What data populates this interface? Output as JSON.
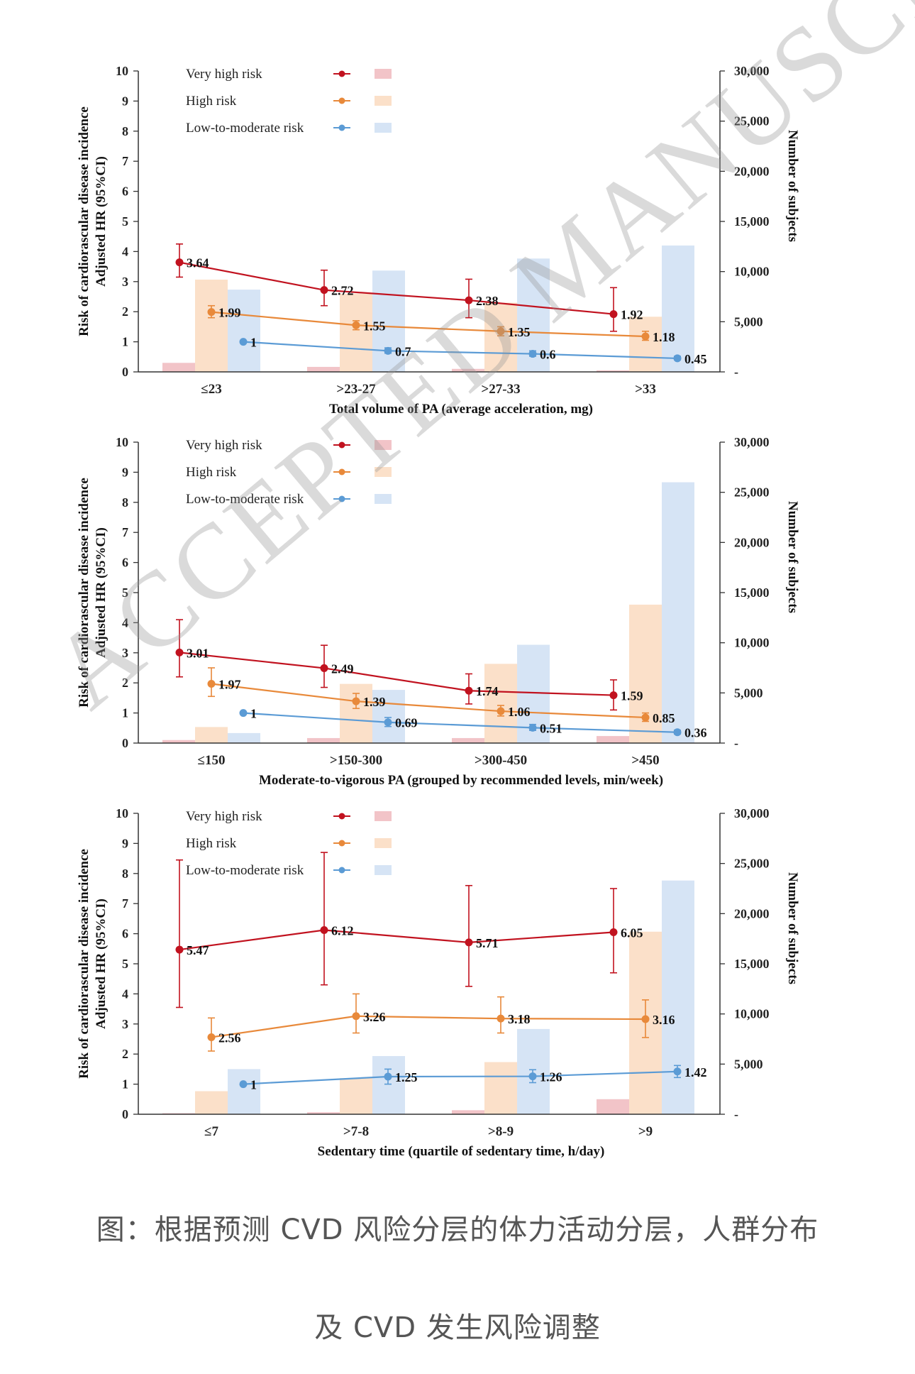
{
  "legend": {
    "very_high": "Very high risk",
    "high": "High risk",
    "low_moderate": "Low-to-moderate risk"
  },
  "colors": {
    "very_high_line": "#c1121f",
    "high_line": "#e8893a",
    "low_line": "#5b9bd5",
    "very_high_bar": "#f2c4c8",
    "high_bar": "#fbe0c9",
    "low_bar": "#d6e4f5"
  },
  "watermark": "ACCEPTED MANUSCRIPT",
  "caption": {
    "line1": "图：根据预测 CVD 风险分层的体力活动分层，人群分布",
    "line2": "及 CVD 发生风险调整"
  },
  "chart_data": [
    {
      "type": "bar+line",
      "xlabel": "Total volume of PA (average acceleration, mg)",
      "ylabel_left": [
        "Risk of cardiorascular disease incidence",
        "Adjusted HR (95%CI)"
      ],
      "ylabel_right": "Number of subjects",
      "ylim_left": [
        0,
        10
      ],
      "ylim_right": [
        0,
        30000
      ],
      "yticks_left": [
        "0",
        "1",
        "2",
        "3",
        "4",
        "5",
        "6",
        "7",
        "8",
        "9",
        "10"
      ],
      "yticks_right": [
        "-",
        "5,000",
        "10,000",
        "15,000",
        "20,000",
        "25,000",
        "30,000"
      ],
      "categories": [
        "≤23",
        ">23-27",
        ">27-33",
        ">33"
      ],
      "bars": {
        "very_high": [
          900,
          500,
          300,
          150
        ],
        "high": [
          9200,
          7800,
          6900,
          5500
        ],
        "low_moderate": [
          8200,
          10100,
          11300,
          12600
        ]
      },
      "lines": {
        "very_high": {
          "hr": [
            3.64,
            2.72,
            2.38,
            1.92
          ],
          "lo": [
            3.15,
            2.2,
            1.8,
            1.35
          ],
          "hi": [
            4.25,
            3.38,
            3.08,
            2.8
          ],
          "labels": [
            "3.64",
            "2.72",
            "2.38",
            "1.92"
          ]
        },
        "high": {
          "hr": [
            1.99,
            1.55,
            1.35,
            1.18
          ],
          "lo": [
            1.8,
            1.4,
            1.2,
            1.05
          ],
          "hi": [
            2.2,
            1.7,
            1.5,
            1.35
          ],
          "labels": [
            "1.99",
            "1.55",
            "1.35",
            "1.18"
          ]
        },
        "low_moderate": {
          "hr": [
            1,
            0.7,
            0.6,
            0.45
          ],
          "lo": [
            1,
            0.62,
            0.52,
            0.4
          ],
          "hi": [
            1,
            0.8,
            0.7,
            0.52
          ],
          "labels": [
            "1",
            "0.7",
            "0.6",
            "0.45"
          ]
        }
      }
    },
    {
      "type": "bar+line",
      "xlabel": "Moderate-to-vigorous PA (grouped by recommended levels, min/week)",
      "ylabel_left": [
        "Risk of cardiorascular disease incidence",
        "Adjusted HR (95%CI)"
      ],
      "ylabel_right": "Number of subjects",
      "ylim_left": [
        0,
        10
      ],
      "ylim_right": [
        0,
        30000
      ],
      "yticks_left": [
        "0",
        "1",
        "2",
        "3",
        "4",
        "5",
        "6",
        "7",
        "8",
        "9",
        "10"
      ],
      "yticks_right": [
        "-",
        "5,000",
        "10,000",
        "15,000",
        "20,000",
        "25,000",
        "30,000"
      ],
      "categories": [
        "≤150",
        ">150-300",
        ">300-450",
        ">450"
      ],
      "bars": {
        "very_high": [
          300,
          500,
          500,
          700
        ],
        "high": [
          1600,
          5900,
          7900,
          13800
        ],
        "low_moderate": [
          1000,
          5300,
          9800,
          26000
        ]
      },
      "lines": {
        "very_high": {
          "hr": [
            3.01,
            2.49,
            1.74,
            1.59
          ],
          "lo": [
            2.2,
            1.85,
            1.3,
            1.1
          ],
          "hi": [
            4.1,
            3.25,
            2.3,
            2.1
          ],
          "labels": [
            "3.01",
            "2.49",
            "1.74",
            "1.59"
          ]
        },
        "high": {
          "hr": [
            1.97,
            1.39,
            1.06,
            0.85
          ],
          "lo": [
            1.55,
            1.15,
            0.9,
            0.72
          ],
          "hi": [
            2.5,
            1.65,
            1.25,
            1.0
          ],
          "labels": [
            "1.97",
            "1.39",
            "1.06",
            "0.85"
          ]
        },
        "low_moderate": {
          "hr": [
            1,
            0.69,
            0.51,
            0.36
          ],
          "lo": [
            1,
            0.55,
            0.42,
            0.3
          ],
          "hi": [
            1,
            0.85,
            0.62,
            0.43
          ],
          "labels": [
            "1",
            "0.69",
            "0.51",
            "0.36"
          ]
        }
      }
    },
    {
      "type": "bar+line",
      "xlabel": "Sedentary time (quartile of sedentary time, h/day)",
      "ylabel_left": [
        "Risk of cardiorascular disease incidence",
        "Adjusted HR (95%CI)"
      ],
      "ylabel_right": "Number of subjects",
      "ylim_left": [
        0,
        10
      ],
      "ylim_right": [
        0,
        30000
      ],
      "yticks_left": [
        "0",
        "1",
        "2",
        "3",
        "4",
        "5",
        "6",
        "7",
        "8",
        "9",
        "10"
      ],
      "yticks_right": [
        "-",
        "5,000",
        "10,000",
        "15,000",
        "20,000",
        "25,000",
        "30,000"
      ],
      "categories": [
        "≤7",
        ">7-8",
        ">8-9",
        ">9"
      ],
      "bars": {
        "very_high": [
          100,
          200,
          400,
          1500
        ],
        "high": [
          2300,
          3600,
          5200,
          18200
        ],
        "low_moderate": [
          4500,
          5800,
          8500,
          23300
        ]
      },
      "lines": {
        "very_high": {
          "hr": [
            5.47,
            6.12,
            5.71,
            6.05
          ],
          "lo": [
            3.55,
            4.3,
            4.25,
            4.7
          ],
          "hi": [
            8.45,
            8.7,
            7.6,
            7.5
          ],
          "labels": [
            "5.47",
            "6.12",
            "5.71",
            "6.05"
          ]
        },
        "high": {
          "hr": [
            2.56,
            3.26,
            3.18,
            3.16
          ],
          "lo": [
            2.1,
            2.7,
            2.7,
            2.55
          ],
          "hi": [
            3.2,
            4.0,
            3.9,
            3.8
          ],
          "labels": [
            "2.56",
            "3.26",
            "3.18",
            "3.16"
          ]
        },
        "low_moderate": {
          "hr": [
            1,
            1.25,
            1.26,
            1.42
          ],
          "lo": [
            1,
            1.0,
            1.05,
            1.22
          ],
          "hi": [
            1,
            1.5,
            1.48,
            1.62
          ],
          "labels": [
            "1",
            "1.25",
            "1.26",
            "1.42"
          ]
        }
      }
    }
  ]
}
